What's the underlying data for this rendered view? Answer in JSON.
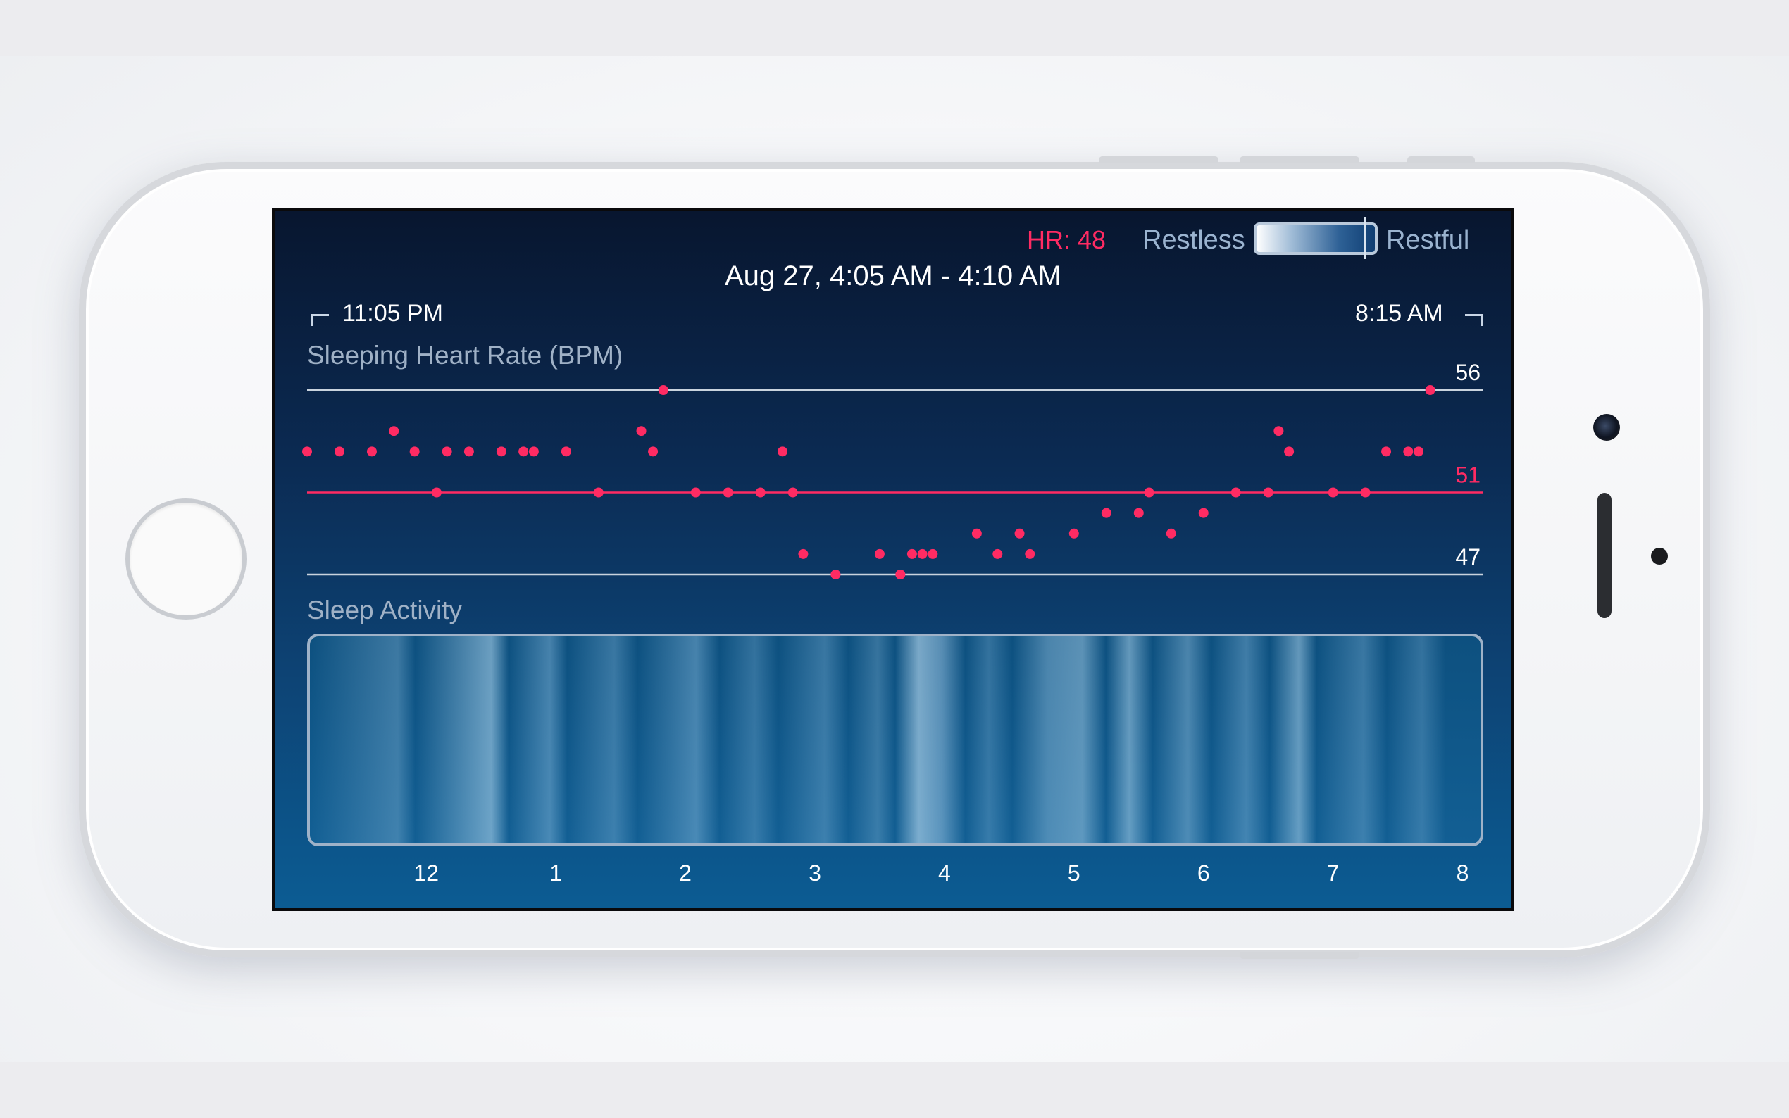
{
  "app": {
    "hr_readout": "HR: 48",
    "legend": {
      "left_label": "Restless",
      "right_label": "Restful"
    },
    "date_range": "Aug 27, 4:05 AM - 4:10 AM",
    "start_time": "11:05 PM",
    "end_time": "8:15 AM",
    "selection_hour": 4.08
  },
  "chart_data": {
    "type": "scatter",
    "title": "Sleeping Heart Rate (BPM)",
    "y_reference_lines": [
      {
        "value": 56,
        "label": "56",
        "color": "#c9d3de"
      },
      {
        "value": 51,
        "label": "51",
        "color": "#ff2b63"
      },
      {
        "value": 47,
        "label": "47",
        "color": "#c9d3de"
      }
    ],
    "point_color": "#ff2b63",
    "points": [
      {
        "x": 11.25,
        "y": 53
      },
      {
        "x": 11.5,
        "y": 53
      },
      {
        "x": 11.75,
        "y": 53
      },
      {
        "x": 11.92,
        "y": 54
      },
      {
        "x": 12.08,
        "y": 53
      },
      {
        "x": 12.25,
        "y": 51
      },
      {
        "x": 12.33,
        "y": 53
      },
      {
        "x": 12.5,
        "y": 53
      },
      {
        "x": 12.75,
        "y": 53
      },
      {
        "x": 12.92,
        "y": 53
      },
      {
        "x": 13.0,
        "y": 53
      },
      {
        "x": 13.25,
        "y": 53
      },
      {
        "x": 13.5,
        "y": 51
      },
      {
        "x": 13.83,
        "y": 54
      },
      {
        "x": 13.92,
        "y": 53
      },
      {
        "x": 14.0,
        "y": 56
      },
      {
        "x": 14.25,
        "y": 51
      },
      {
        "x": 14.5,
        "y": 51
      },
      {
        "x": 14.75,
        "y": 51
      },
      {
        "x": 14.92,
        "y": 53
      },
      {
        "x": 15.0,
        "y": 51
      },
      {
        "x": 15.08,
        "y": 48
      },
      {
        "x": 15.33,
        "y": 47
      },
      {
        "x": 15.67,
        "y": 48
      },
      {
        "x": 15.83,
        "y": 47
      },
      {
        "x": 15.92,
        "y": 48
      },
      {
        "x": 16.0,
        "y": 48
      },
      {
        "x": 16.08,
        "y": 48
      },
      {
        "x": 16.42,
        "y": 49
      },
      {
        "x": 16.58,
        "y": 48
      },
      {
        "x": 16.75,
        "y": 49
      },
      {
        "x": 16.83,
        "y": 48
      },
      {
        "x": 17.17,
        "y": 49
      },
      {
        "x": 17.42,
        "y": 50
      },
      {
        "x": 17.67,
        "y": 50
      },
      {
        "x": 17.75,
        "y": 51
      },
      {
        "x": 17.92,
        "y": 49
      },
      {
        "x": 18.17,
        "y": 50
      },
      {
        "x": 18.42,
        "y": 51
      },
      {
        "x": 18.67,
        "y": 51
      },
      {
        "x": 18.75,
        "y": 54
      },
      {
        "x": 18.83,
        "y": 53
      },
      {
        "x": 19.17,
        "y": 51
      },
      {
        "x": 19.42,
        "y": 51
      },
      {
        "x": 19.58,
        "y": 53
      },
      {
        "x": 19.75,
        "y": 53
      },
      {
        "x": 19.83,
        "y": 53
      },
      {
        "x": 19.92,
        "y": 56
      }
    ],
    "x_range": [
      11.25,
      20.33
    ],
    "y_range": [
      47,
      56
    ],
    "grid": false
  },
  "activity": {
    "title": "Sleep Activity",
    "x_ticks": [
      {
        "label": "12",
        "hour": 12.17
      },
      {
        "label": "1",
        "hour": 13.17
      },
      {
        "label": "2",
        "hour": 14.17
      },
      {
        "label": "3",
        "hour": 15.17
      },
      {
        "label": "4",
        "hour": 16.17
      },
      {
        "label": "5",
        "hour": 17.17
      },
      {
        "label": "6",
        "hour": 18.17
      },
      {
        "label": "7",
        "hour": 19.17
      },
      {
        "label": "8",
        "hour": 20.17
      }
    ]
  }
}
